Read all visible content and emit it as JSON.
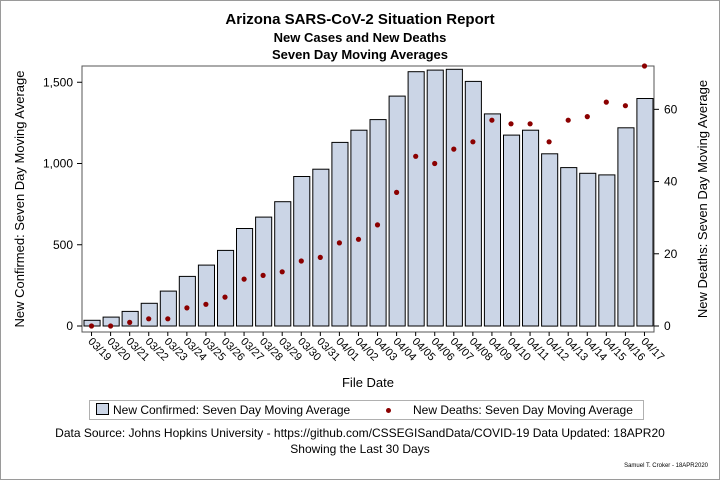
{
  "chart_data": {
    "type": "bar",
    "title": "Arizona SARS-CoV-2 Situation Report",
    "subtitles": [
      "New Cases and New Deaths",
      "Seven Day Moving Averages"
    ],
    "categories": [
      "03/19",
      "03/20",
      "03/21",
      "03/22",
      "03/23",
      "03/24",
      "03/25",
      "03/26",
      "03/27",
      "03/28",
      "03/29",
      "03/30",
      "03/31",
      "04/01",
      "04/02",
      "04/03",
      "04/04",
      "04/05",
      "04/06",
      "04/07",
      "04/08",
      "04/09",
      "04/10",
      "04/11",
      "04/12",
      "04/13",
      "04/14",
      "04/15",
      "04/16",
      "04/17"
    ],
    "xlabel": "File Date",
    "ylabel": "New Confirmed: Seven Day Moving Average",
    "y2label": "New Deaths: Seven Day Moving Average",
    "ylim": [
      0,
      1600
    ],
    "y2lim": [
      0,
      72
    ],
    "yticks": [
      0,
      500,
      1000,
      1500
    ],
    "ytick_labels": [
      "0",
      "500",
      "1,000",
      "1,500"
    ],
    "y2ticks": [
      0,
      20,
      40,
      60
    ],
    "y2tick_labels": [
      "0",
      "20",
      "40",
      "60"
    ],
    "series": [
      {
        "name": "New Confirmed: Seven Day Moving Average",
        "type": "bar",
        "axis": "left",
        "color": "#cbd5e6",
        "values": [
          35,
          55,
          90,
          140,
          215,
          305,
          375,
          465,
          600,
          670,
          765,
          920,
          965,
          1130,
          1205,
          1270,
          1415,
          1565,
          1575,
          1580,
          1505,
          1305,
          1175,
          1205,
          1060,
          975,
          940,
          930,
          1220,
          1400
        ]
      },
      {
        "name": "New Deaths: Seven Day Moving Average",
        "type": "scatter",
        "axis": "right",
        "color": "#8b0000",
        "values": [
          0,
          0,
          1,
          2,
          2,
          5,
          6,
          8,
          13,
          14,
          15,
          18,
          19,
          23,
          24,
          28,
          37,
          47,
          45,
          49,
          51,
          57,
          56,
          56,
          51,
          57,
          58,
          62,
          61,
          72
        ]
      }
    ],
    "legend": "bottom"
  },
  "footer": {
    "source": "Data Source: Johns Hopkins University - https://github.com/CSSEGISandData/COVID-19 Data Updated: 18APR20",
    "window": "Showing the Last 30 Days",
    "credit": "Samuel T. Croker - 18APR2020"
  }
}
